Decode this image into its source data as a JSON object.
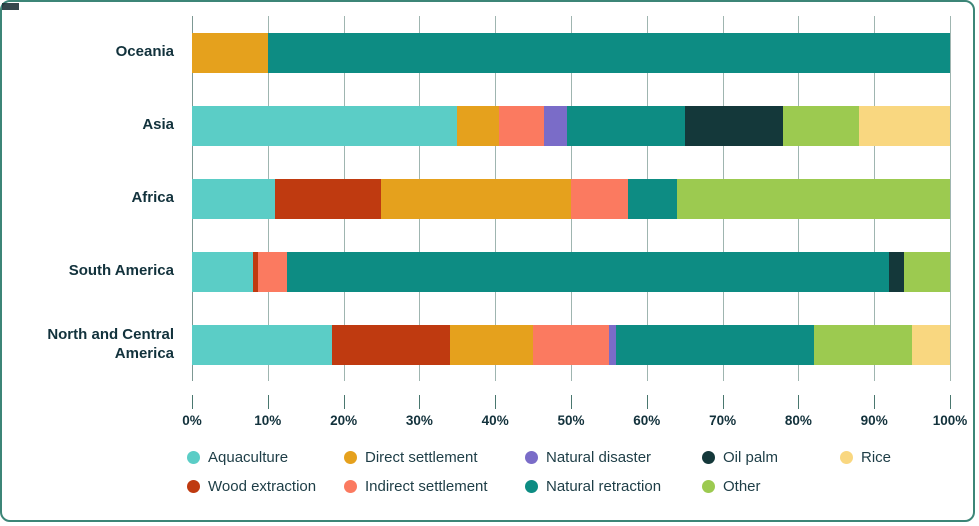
{
  "frame": {
    "border_color": "#3c8577",
    "background": "#ffffff"
  },
  "chart_data": {
    "type": "bar",
    "variant": "horizontal-stacked-percent",
    "title": "",
    "xlabel": "",
    "ylabel": "",
    "x_range": [
      0,
      100
    ],
    "grid": true,
    "grid_color": "#9fb5b0",
    "tick_color": "#49776f",
    "text_color": "#13323c",
    "categories": [
      "Oceania",
      "Asia",
      "Africa",
      "South America",
      "North and Central America"
    ],
    "x_ticks": [
      "0%",
      "10%",
      "20%",
      "30%",
      "40%",
      "50%",
      "60%",
      "70%",
      "80%",
      "90%",
      "100%"
    ],
    "series": [
      {
        "name": "Aquaculture",
        "color": "#5bcdc6",
        "values": [
          0,
          35,
          11,
          8,
          18.5
        ]
      },
      {
        "name": "Wood extraction",
        "color": "#bf3a10",
        "values": [
          0,
          0,
          14,
          0.7,
          15.5
        ]
      },
      {
        "name": "Direct settlement",
        "color": "#e5a11d",
        "values": [
          10,
          5.5,
          25,
          0,
          11
        ]
      },
      {
        "name": "Indirect settlement",
        "color": "#fb7a60",
        "values": [
          0,
          6,
          7.5,
          3.8,
          10
        ]
      },
      {
        "name": "Natural disaster",
        "color": "#7a6cc8",
        "values": [
          0,
          3,
          0,
          0,
          1
        ]
      },
      {
        "name": "Natural retraction",
        "color": "#0d8c83",
        "values": [
          90,
          15.5,
          6.5,
          79.5,
          26
        ]
      },
      {
        "name": "Oil palm",
        "color": "#14383a",
        "values": [
          0,
          13,
          0,
          2,
          0
        ]
      },
      {
        "name": "Other",
        "color": "#9cca50",
        "values": [
          0,
          10,
          36,
          6,
          13
        ]
      },
      {
        "name": "Rice",
        "color": "#f9d780",
        "values": [
          0,
          12,
          0,
          0,
          5
        ]
      }
    ],
    "legend": {
      "position": "bottom",
      "rows": [
        [
          "Aquaculture",
          "Direct settlement",
          "Natural disaster",
          "Oil palm",
          "Rice"
        ],
        [
          "Wood extraction",
          "Indirect settlement",
          "Natural retraction",
          "Other"
        ]
      ]
    }
  }
}
